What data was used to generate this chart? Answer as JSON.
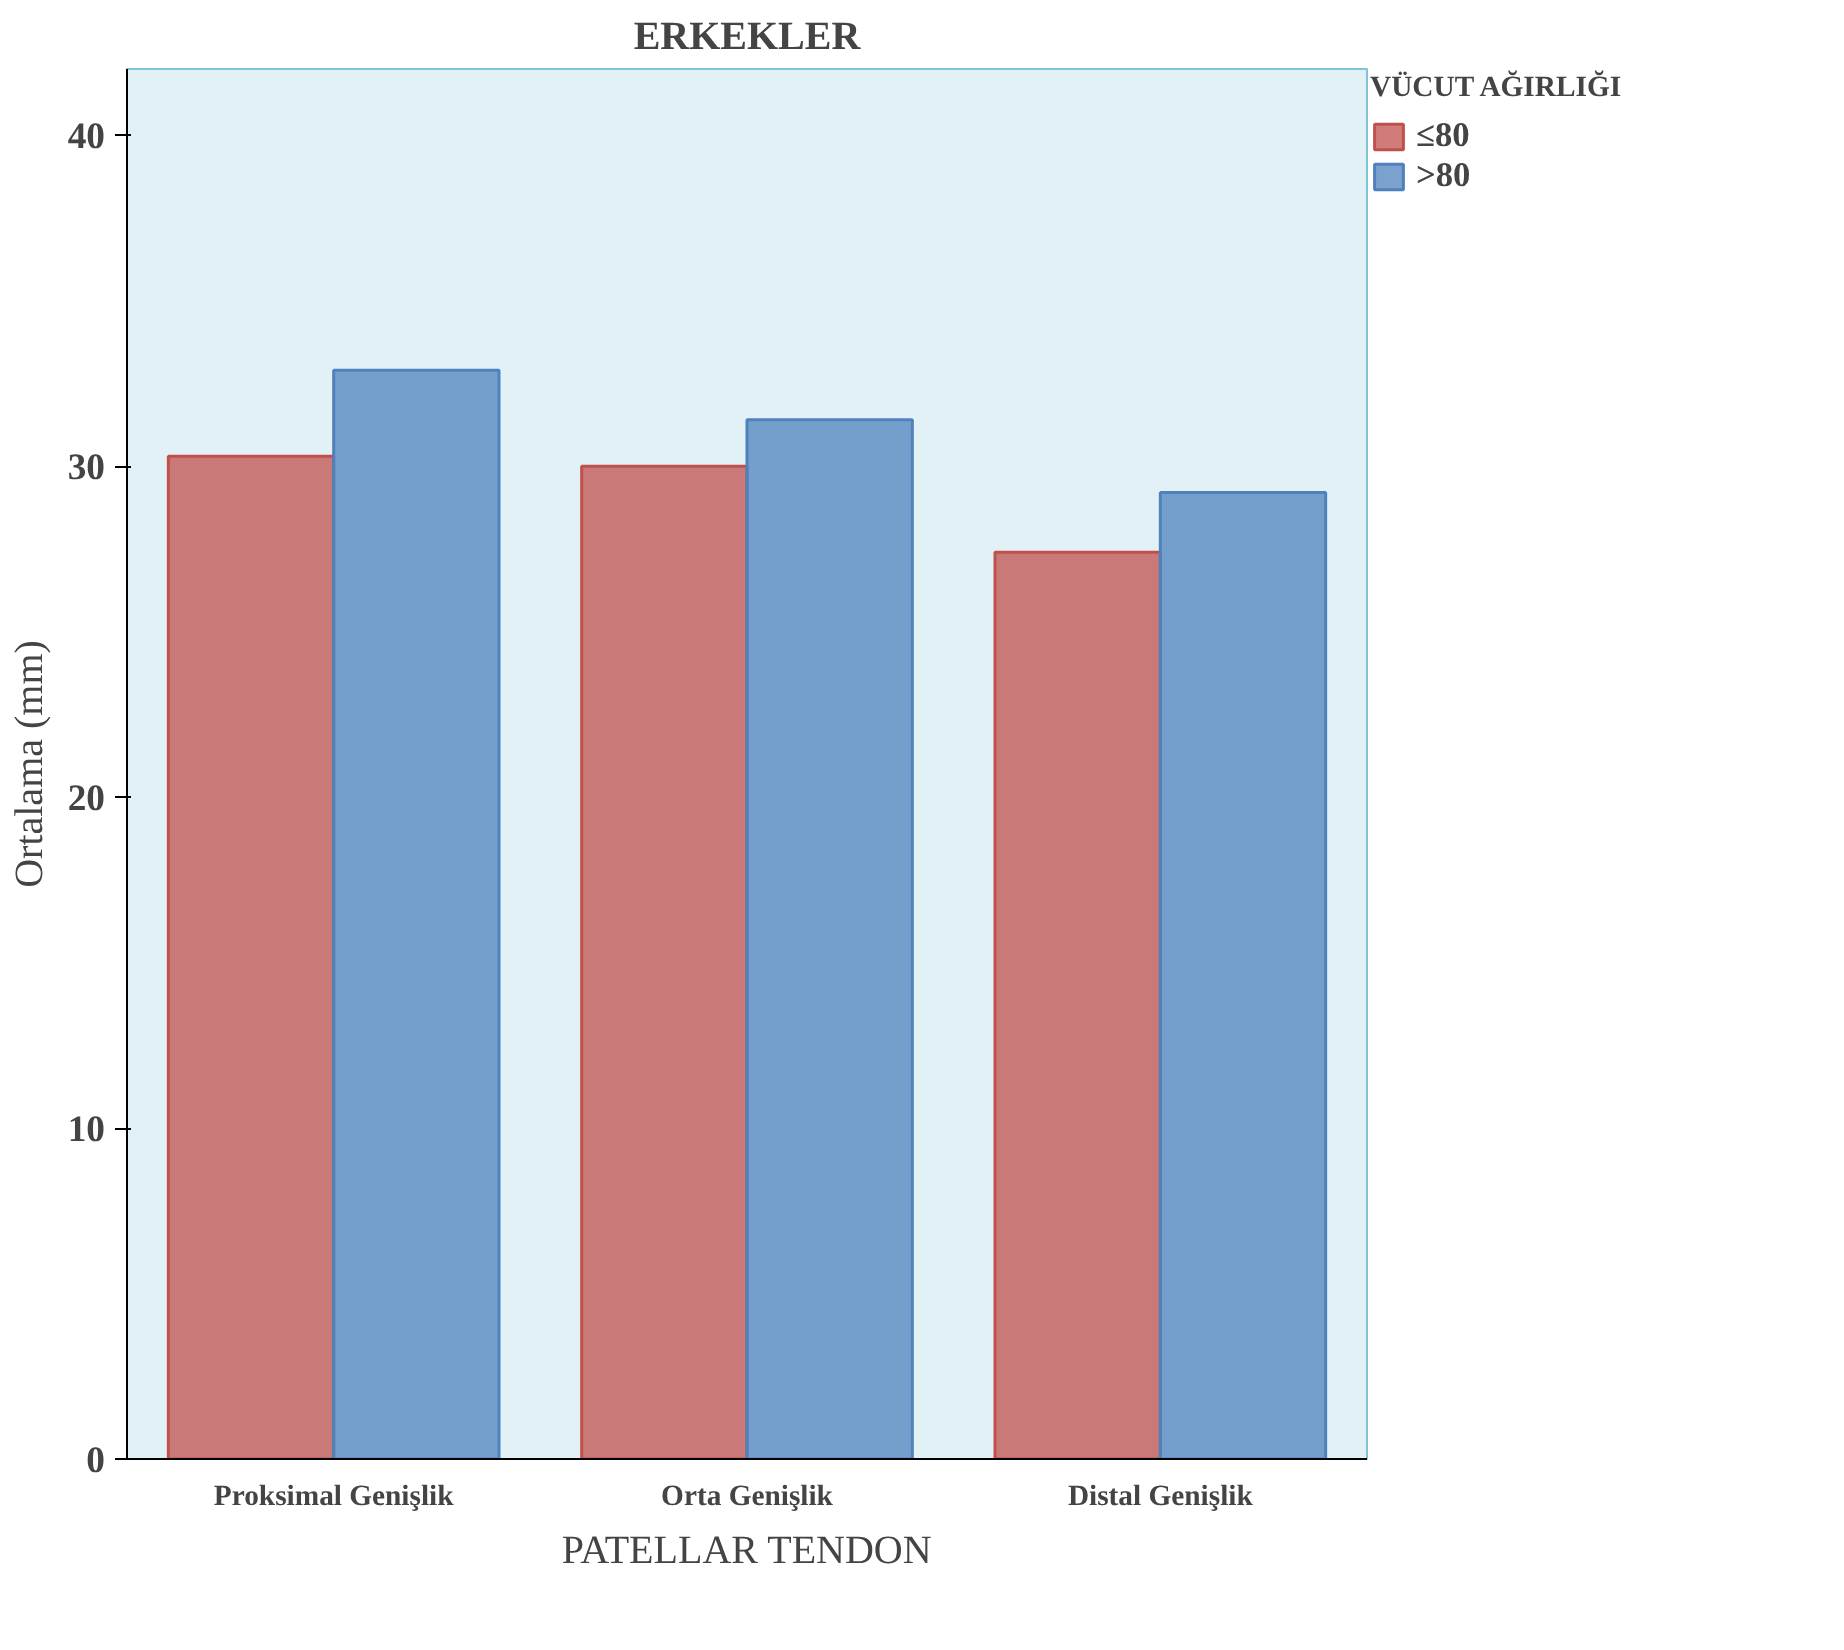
{
  "chart_data": {
    "type": "bar",
    "title": "ERKEKLER",
    "xlabel": "PATELLAR TENDON",
    "ylabel": "Ortalama (mm)",
    "legend_title": "VÜCUT AĞIRLIĞI",
    "categories": [
      "Proksimal Genişlik",
      "Orta Genişlik",
      "Distal Genişlik"
    ],
    "series": [
      {
        "name": "≤80",
        "color": "#c0504d",
        "values": [
          30.3,
          30.0,
          27.4
        ]
      },
      {
        "name": ">80",
        "color": "#4f81bd",
        "values": [
          32.9,
          31.4,
          29.2
        ]
      }
    ],
    "ylim": [
      0,
      42
    ],
    "yticks": [
      0,
      10,
      20,
      30,
      40
    ],
    "grid": false,
    "legend": "top right"
  }
}
